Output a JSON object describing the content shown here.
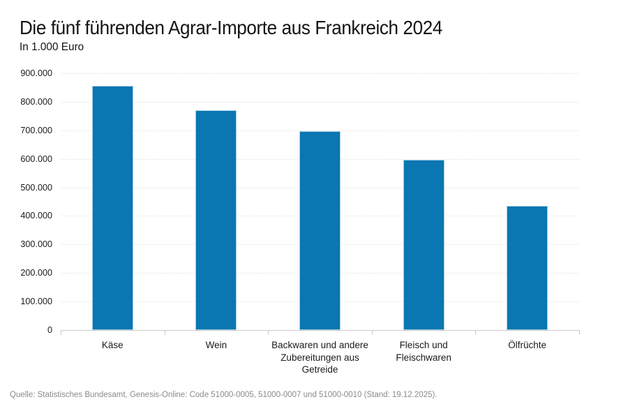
{
  "header": {
    "title": "Die fünf führenden Agrar-Importe aus Frankreich 2024",
    "subtitle": "In 1.000 Euro"
  },
  "chart_data": {
    "type": "bar",
    "title": "Die fünf führenden Agrar-Importe aus Frankreich 2024",
    "subtitle": "In 1.000 Euro",
    "unit": "1.000 Euro",
    "categories": [
      "Käse",
      "Wein",
      "Backwaren und andere Zubereitungen aus Getreide",
      "Fleisch und Fleischwaren",
      "Ölfrüchte"
    ],
    "category_label_lines": [
      [
        "Käse"
      ],
      [
        "Wein"
      ],
      [
        "Backwaren und andere",
        "Zubereitungen aus",
        "Getreide"
      ],
      [
        "Fleisch und",
        "Fleischwaren"
      ],
      [
        "Ölfrüchte"
      ]
    ],
    "values": [
      855000,
      770000,
      698000,
      596000,
      436000
    ],
    "ylim": [
      0,
      900000
    ],
    "ytick_step": 100000,
    "ytick_labels": [
      "0",
      "100.000",
      "200.000",
      "300.000",
      "400.000",
      "500.000",
      "600.000",
      "700.000",
      "800.000",
      "900.000"
    ],
    "grid": true,
    "legend": false,
    "colors": {
      "bar_fill": "#0a76b2",
      "bar_edge": "#a9cfe5",
      "axis_line": "#c9c9c9",
      "gridline": "#e3e3e3",
      "text": "#1a1a1a",
      "source_text": "#8a8a8a"
    }
  },
  "footer": {
    "source": "Quelle: Statistisches Bundesamt, Genesis-Online: Code 51000-0005, 51000-0007 und 51000-0010 (Stand: 19.12.2025)."
  }
}
